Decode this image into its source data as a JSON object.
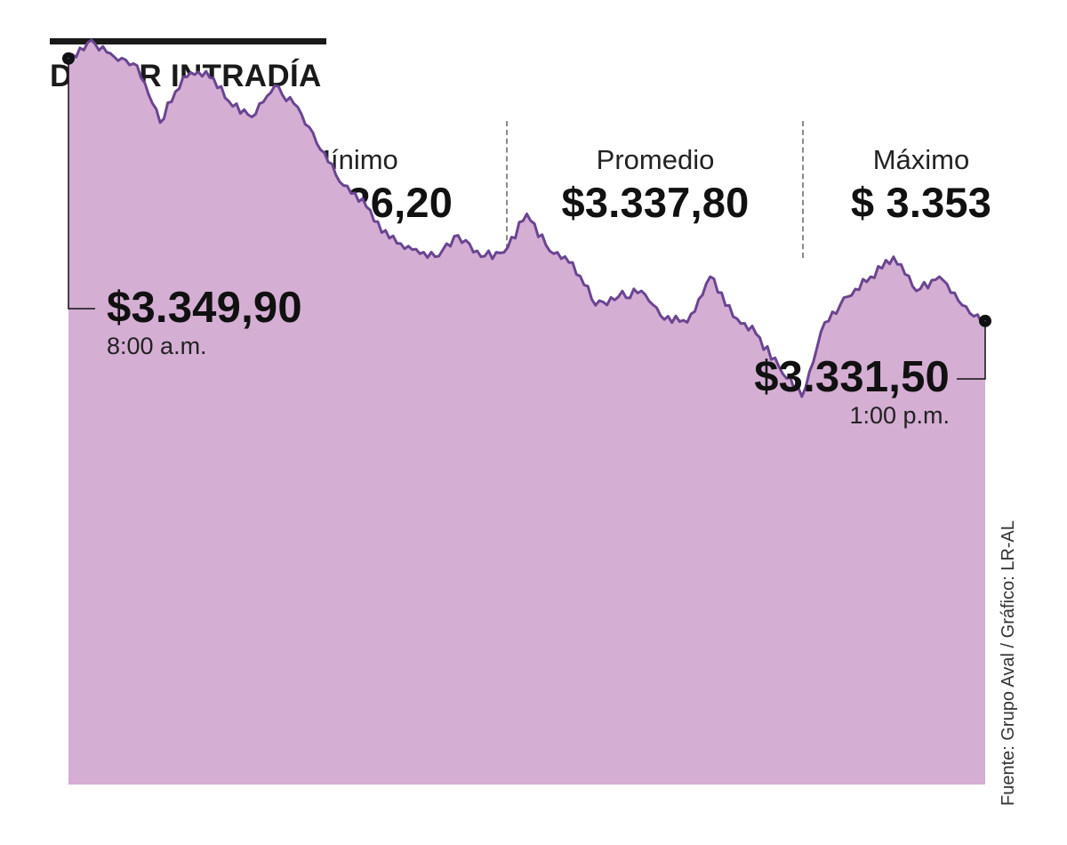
{
  "title": "DÓLAR INTRADÍA",
  "icon": "dollar-coin-icon",
  "colors": {
    "accent": "#d5aed4",
    "line": "#6a4591",
    "coin": "#f6a623",
    "coin_border": "#f7c84a",
    "coin_symbol": "#ffffff"
  },
  "stats": {
    "min": {
      "label": "Mínimo",
      "value": "$ 3.326,20"
    },
    "avg": {
      "label": "Promedio",
      "value": "$3.337,80"
    },
    "max": {
      "label": "Máximo",
      "value": "$ 3.353"
    }
  },
  "callouts": {
    "start": {
      "value": "$3.349,90",
      "time": "8:00 a.m."
    },
    "end": {
      "value": "$3.331,50",
      "time": "1:00 p.m."
    }
  },
  "source": "Fuente: Grupo Aval / Gráfico: LR-AL",
  "chart_data": {
    "type": "area",
    "title": "DÓLAR INTRADÍA",
    "xlabel": "",
    "ylabel": "",
    "grid": false,
    "legend": "none",
    "x": [
      "8:00",
      "8:07",
      "8:15",
      "8:22",
      "8:30",
      "8:37",
      "8:45",
      "8:52",
      "9:00",
      "9:07",
      "9:15",
      "9:22",
      "9:30",
      "9:37",
      "9:45",
      "9:52",
      "10:00",
      "10:07",
      "10:15",
      "10:22",
      "10:30",
      "10:37",
      "10:45",
      "10:52",
      "11:00",
      "11:07",
      "11:15",
      "11:22",
      "11:30",
      "11:37",
      "11:45",
      "11:52",
      "12:00",
      "12:07",
      "12:15",
      "12:22",
      "12:30",
      "12:37",
      "12:45",
      "12:52",
      "13:00"
    ],
    "series": [
      {
        "values": [
          3349.9,
          3351.2,
          3350.0,
          3349.4,
          3345.4,
          3348.6,
          3349.0,
          3346.9,
          3345.8,
          3348.0,
          3346.5,
          3343.5,
          3341.0,
          3339.5,
          3337.3,
          3336.5,
          3336.0,
          3337.5,
          3336.0,
          3336.3,
          3339.0,
          3336.4,
          3335.6,
          3332.6,
          3333.2,
          3333.6,
          3331.6,
          3331.4,
          3334.6,
          3331.8,
          3330.6,
          3328.3,
          3326.2,
          3331.4,
          3333.2,
          3334.6,
          3336.0,
          3333.6,
          3334.6,
          3332.6,
          3331.5
        ]
      }
    ],
    "ylim": [
      3299,
      3354
    ]
  }
}
